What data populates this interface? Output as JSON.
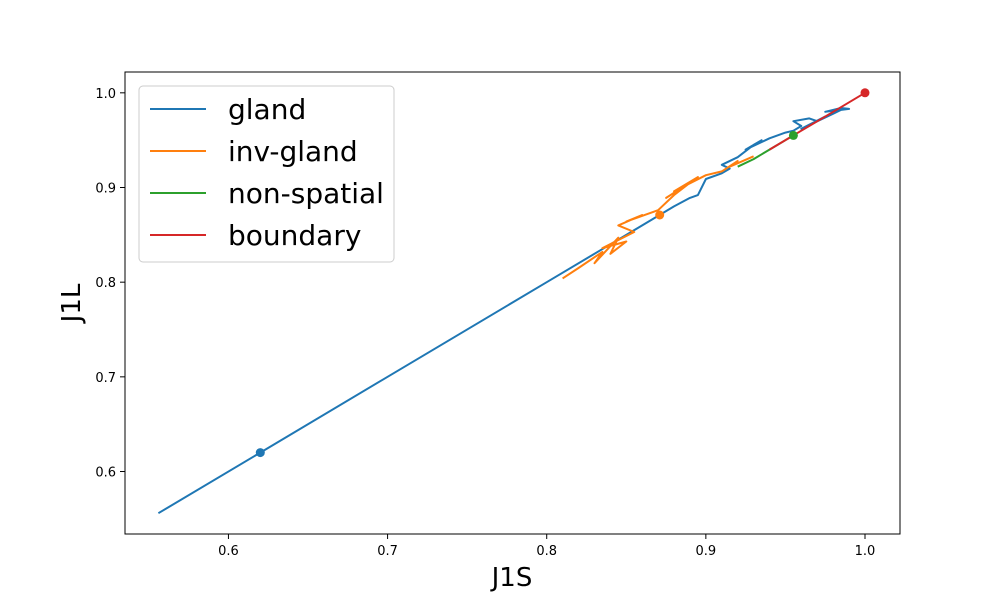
{
  "chart_data": {
    "type": "line",
    "title": "",
    "xlabel": "J1S",
    "ylabel": "J1L",
    "xlim": [
      0.535,
      1.022
    ],
    "ylim": [
      0.534,
      1.022
    ],
    "x_ticks": [
      "0.6",
      "0.7",
      "0.8",
      "0.9",
      "1.0"
    ],
    "y_ticks": [
      "0.6",
      "0.7",
      "0.8",
      "0.9",
      "1.0"
    ],
    "grid": false,
    "legend_position": "top-left",
    "series": [
      {
        "name": "gland",
        "color": "#1f77b4",
        "x": [
          0.556,
          0.62,
          0.7,
          0.8,
          0.84,
          0.87,
          0.88,
          0.89,
          0.895,
          0.9,
          0.91,
          0.915,
          0.91,
          0.92,
          0.93,
          0.935,
          0.925,
          0.94,
          0.95,
          0.955,
          0.96,
          0.955,
          0.965,
          0.97,
          0.975,
          0.96,
          0.98,
          0.985,
          0.99,
          0.975,
          0.985,
          0.99
        ],
        "y": [
          0.556,
          0.62,
          0.7,
          0.8,
          0.84,
          0.87,
          0.88,
          0.889,
          0.892,
          0.909,
          0.915,
          0.92,
          0.924,
          0.932,
          0.945,
          0.95,
          0.94,
          0.952,
          0.958,
          0.96,
          0.965,
          0.97,
          0.973,
          0.97,
          0.975,
          0.962,
          0.978,
          0.982,
          0.983,
          0.98,
          0.984,
          0.983
        ]
      },
      {
        "name": "inv-gland",
        "color": "#ff7f0e",
        "x": [
          0.81,
          0.82,
          0.835,
          0.83,
          0.845,
          0.84,
          0.85,
          0.835,
          0.855,
          0.845,
          0.86,
          0.85,
          0.87,
          0.88,
          0.89,
          0.875,
          0.895,
          0.88,
          0.9,
          0.91,
          0.92,
          0.915,
          0.93
        ],
        "y": [
          0.804,
          0.815,
          0.832,
          0.82,
          0.847,
          0.83,
          0.843,
          0.836,
          0.853,
          0.86,
          0.871,
          0.864,
          0.876,
          0.892,
          0.905,
          0.889,
          0.911,
          0.896,
          0.913,
          0.917,
          0.928,
          0.922,
          0.933
        ]
      },
      {
        "name": "non-spatial",
        "color": "#2ca02c",
        "x": [
          0.92,
          0.93,
          0.94,
          0.95,
          0.955
        ],
        "y": [
          0.922,
          0.93,
          0.94,
          0.95,
          0.955
        ]
      },
      {
        "name": "boundary",
        "color": "#d62728",
        "x": [
          0.94,
          0.96,
          0.98,
          1.0
        ],
        "y": [
          0.94,
          0.96,
          0.98,
          1.0
        ]
      }
    ],
    "markers": [
      {
        "series": "gland",
        "x": 0.62,
        "y": 0.62,
        "color": "#1f77b4"
      },
      {
        "series": "inv-gland",
        "x": 0.871,
        "y": 0.871,
        "color": "#ff7f0e"
      },
      {
        "series": "non-spatial",
        "x": 0.955,
        "y": 0.955,
        "color": "#2ca02c"
      },
      {
        "series": "boundary",
        "x": 1.0,
        "y": 1.0,
        "color": "#d62728"
      }
    ]
  }
}
